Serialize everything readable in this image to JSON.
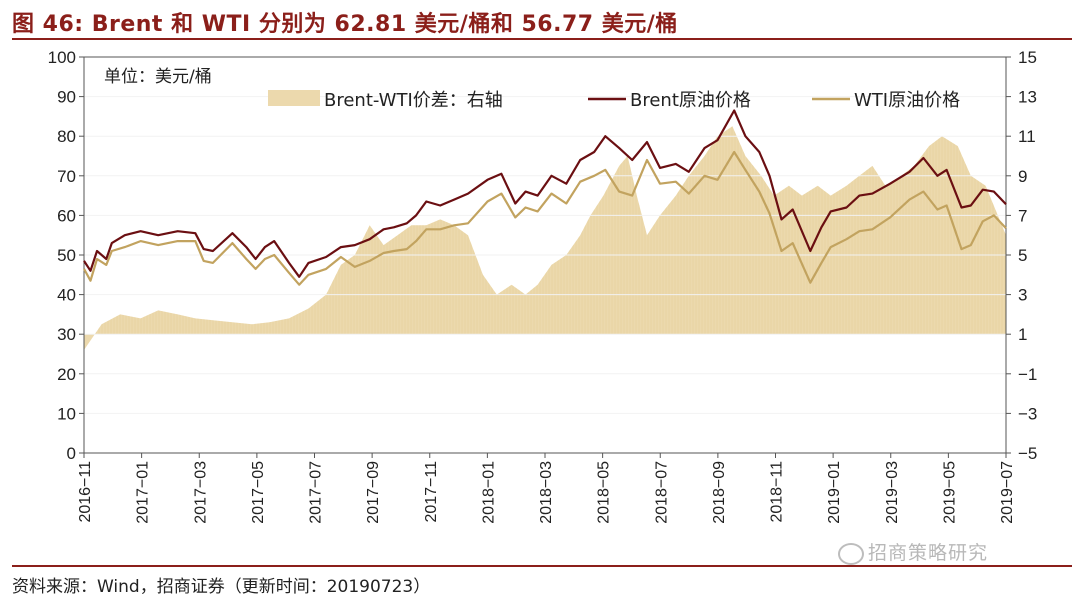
{
  "title": "图 46:   Brent 和 WTI 分别为 62.81 美元/桶和 56.77 美元/桶",
  "source": "资料来源：Wind，招商证券（更新时间：20190723）",
  "watermark": "招商策略研究",
  "colors": {
    "brent": "#6b0f12",
    "wti": "#c2a35f",
    "spread": "#ecd9ad",
    "accent": "#8b1f1a"
  },
  "chart_data": {
    "type": "line",
    "unit_label": "单位：美元/桶",
    "y_left": {
      "min": 0,
      "max": 100,
      "ticks": [
        "0",
        "10",
        "20",
        "30",
        "40",
        "50",
        "60",
        "70",
        "80",
        "90",
        "100"
      ]
    },
    "y_right": {
      "min": -5,
      "max": 15,
      "ticks": [
        "−5",
        "−3",
        "−1",
        "1",
        "3",
        "5",
        "7",
        "9",
        "11",
        "13",
        "15"
      ]
    },
    "x_tick_labels": [
      "2016−11",
      "2017−01",
      "2017−03",
      "2017−05",
      "2017−07",
      "2017−09",
      "2017−11",
      "2018−01",
      "2018−03",
      "2018−05",
      "2018−07",
      "2018−09",
      "2018−11",
      "2019−01",
      "2019−03",
      "2019−05",
      "2019−07"
    ],
    "x_range": [
      "2016-11-01",
      "2019-07-23"
    ],
    "legend_location": "top",
    "series": [
      {
        "name": "Brent-WTI价差：右轴",
        "kind": "area",
        "axis": "right",
        "points": [
          [
            "2016-11-01",
            0.2
          ],
          [
            "2016-11-20",
            1.5
          ],
          [
            "2016-12-10",
            2.0
          ],
          [
            "2017-01-01",
            1.8
          ],
          [
            "2017-01-20",
            2.2
          ],
          [
            "2017-02-10",
            2.0
          ],
          [
            "2017-03-01",
            1.8
          ],
          [
            "2017-03-20",
            1.7
          ],
          [
            "2017-04-10",
            1.6
          ],
          [
            "2017-05-01",
            1.5
          ],
          [
            "2017-05-20",
            1.6
          ],
          [
            "2017-06-10",
            1.8
          ],
          [
            "2017-07-01",
            2.3
          ],
          [
            "2017-07-20",
            3.0
          ],
          [
            "2017-08-05",
            4.5
          ],
          [
            "2017-08-20",
            5.0
          ],
          [
            "2017-09-05",
            6.5
          ],
          [
            "2017-09-20",
            5.5
          ],
          [
            "2017-10-05",
            6.0
          ],
          [
            "2017-10-20",
            6.5
          ],
          [
            "2017-11-05",
            6.5
          ],
          [
            "2017-11-20",
            6.8
          ],
          [
            "2017-12-05",
            6.5
          ],
          [
            "2017-12-20",
            6.0
          ],
          [
            "2018-01-05",
            4.0
          ],
          [
            "2018-01-20",
            3.0
          ],
          [
            "2018-02-05",
            3.5
          ],
          [
            "2018-02-20",
            3.0
          ],
          [
            "2018-03-05",
            3.5
          ],
          [
            "2018-03-20",
            4.5
          ],
          [
            "2018-04-05",
            5.0
          ],
          [
            "2018-04-20",
            6.0
          ],
          [
            "2018-05-01",
            7.0
          ],
          [
            "2018-05-15",
            8.0
          ],
          [
            "2018-06-01",
            9.5
          ],
          [
            "2018-06-10",
            10.0
          ],
          [
            "2018-06-20",
            8.0
          ],
          [
            "2018-07-01",
            6.0
          ],
          [
            "2018-07-15",
            7.0
          ],
          [
            "2018-08-01",
            8.0
          ],
          [
            "2018-08-15",
            9.0
          ],
          [
            "2018-09-01",
            10.0
          ],
          [
            "2018-09-15",
            11.0
          ],
          [
            "2018-10-01",
            11.5
          ],
          [
            "2018-10-15",
            10.0
          ],
          [
            "2018-11-01",
            9.0
          ],
          [
            "2018-11-15",
            8.0
          ],
          [
            "2018-12-01",
            8.5
          ],
          [
            "2018-12-15",
            8.0
          ],
          [
            "2019-01-01",
            8.5
          ],
          [
            "2019-01-15",
            8.0
          ],
          [
            "2019-02-01",
            8.5
          ],
          [
            "2019-02-15",
            9.0
          ],
          [
            "2019-03-01",
            9.5
          ],
          [
            "2019-03-15",
            8.5
          ],
          [
            "2019-04-01",
            9.0
          ],
          [
            "2019-04-15",
            9.5
          ],
          [
            "2019-05-01",
            10.5
          ],
          [
            "2019-05-15",
            11.0
          ],
          [
            "2019-06-01",
            10.5
          ],
          [
            "2019-06-15",
            9.0
          ],
          [
            "2019-07-01",
            8.5
          ],
          [
            "2019-07-23",
            6.0
          ]
        ]
      },
      {
        "name": "Brent原油价格",
        "kind": "line",
        "axis": "left",
        "points": [
          [
            "2016-11-01",
            48.5
          ],
          [
            "2016-11-08",
            46.0
          ],
          [
            "2016-11-15",
            51.0
          ],
          [
            "2016-11-25",
            49.0
          ],
          [
            "2016-12-01",
            53.0
          ],
          [
            "2016-12-15",
            55.0
          ],
          [
            "2017-01-01",
            56.0
          ],
          [
            "2017-01-20",
            55.0
          ],
          [
            "2017-02-10",
            56.0
          ],
          [
            "2017-03-01",
            55.5
          ],
          [
            "2017-03-10",
            51.5
          ],
          [
            "2017-03-20",
            51.0
          ],
          [
            "2017-04-10",
            55.5
          ],
          [
            "2017-04-25",
            52.0
          ],
          [
            "2017-05-05",
            49.0
          ],
          [
            "2017-05-15",
            52.0
          ],
          [
            "2017-05-25",
            53.5
          ],
          [
            "2017-06-10",
            48.0
          ],
          [
            "2017-06-21",
            44.5
          ],
          [
            "2017-07-01",
            48.0
          ],
          [
            "2017-07-20",
            49.5
          ],
          [
            "2017-08-05",
            52.0
          ],
          [
            "2017-08-20",
            52.5
          ],
          [
            "2017-09-05",
            54.0
          ],
          [
            "2017-09-20",
            56.5
          ],
          [
            "2017-10-01",
            57.0
          ],
          [
            "2017-10-15",
            58.0
          ],
          [
            "2017-10-25",
            60.0
          ],
          [
            "2017-11-05",
            63.5
          ],
          [
            "2017-11-20",
            62.5
          ],
          [
            "2017-12-05",
            64.0
          ],
          [
            "2017-12-20",
            65.5
          ],
          [
            "2018-01-10",
            69.0
          ],
          [
            "2018-01-25",
            70.5
          ],
          [
            "2018-02-09",
            63.0
          ],
          [
            "2018-02-20",
            66.0
          ],
          [
            "2018-03-05",
            65.0
          ],
          [
            "2018-03-20",
            70.0
          ],
          [
            "2018-04-05",
            68.0
          ],
          [
            "2018-04-20",
            74.0
          ],
          [
            "2018-05-05",
            76.0
          ],
          [
            "2018-05-17",
            80.0
          ],
          [
            "2018-06-01",
            77.0
          ],
          [
            "2018-06-15",
            74.0
          ],
          [
            "2018-07-01",
            78.5
          ],
          [
            "2018-07-15",
            72.0
          ],
          [
            "2018-08-01",
            73.0
          ],
          [
            "2018-08-15",
            71.0
          ],
          [
            "2018-09-01",
            77.0
          ],
          [
            "2018-09-15",
            79.0
          ],
          [
            "2018-10-03",
            86.5
          ],
          [
            "2018-10-15",
            80.0
          ],
          [
            "2018-10-30",
            76.0
          ],
          [
            "2018-11-10",
            70.0
          ],
          [
            "2018-11-23",
            59.0
          ],
          [
            "2018-12-05",
            61.5
          ],
          [
            "2018-12-24",
            51.0
          ],
          [
            "2019-01-05",
            57.0
          ],
          [
            "2019-01-15",
            61.0
          ],
          [
            "2019-02-01",
            62.0
          ],
          [
            "2019-02-15",
            65.0
          ],
          [
            "2019-03-01",
            65.5
          ],
          [
            "2019-03-20",
            68.0
          ],
          [
            "2019-04-10",
            71.0
          ],
          [
            "2019-04-25",
            74.5
          ],
          [
            "2019-05-10",
            70.0
          ],
          [
            "2019-05-20",
            71.5
          ],
          [
            "2019-06-05",
            62.0
          ],
          [
            "2019-06-15",
            62.5
          ],
          [
            "2019-06-28",
            66.5
          ],
          [
            "2019-07-10",
            66.0
          ],
          [
            "2019-07-23",
            62.81
          ]
        ]
      },
      {
        "name": "WTI原油价格",
        "kind": "line",
        "axis": "left",
        "points": [
          [
            "2016-11-01",
            46.5
          ],
          [
            "2016-11-08",
            43.5
          ],
          [
            "2016-11-15",
            49.0
          ],
          [
            "2016-11-25",
            47.5
          ],
          [
            "2016-12-01",
            51.0
          ],
          [
            "2016-12-15",
            52.0
          ],
          [
            "2017-01-01",
            53.5
          ],
          [
            "2017-01-20",
            52.5
          ],
          [
            "2017-02-10",
            53.5
          ],
          [
            "2017-03-01",
            53.5
          ],
          [
            "2017-03-10",
            48.5
          ],
          [
            "2017-03-20",
            48.0
          ],
          [
            "2017-04-10",
            53.0
          ],
          [
            "2017-04-25",
            49.0
          ],
          [
            "2017-05-05",
            46.5
          ],
          [
            "2017-05-15",
            49.0
          ],
          [
            "2017-05-25",
            50.0
          ],
          [
            "2017-06-10",
            45.5
          ],
          [
            "2017-06-21",
            42.5
          ],
          [
            "2017-07-01",
            45.0
          ],
          [
            "2017-07-20",
            46.5
          ],
          [
            "2017-08-05",
            49.5
          ],
          [
            "2017-08-20",
            47.0
          ],
          [
            "2017-09-05",
            48.5
          ],
          [
            "2017-09-20",
            50.5
          ],
          [
            "2017-10-01",
            51.0
          ],
          [
            "2017-10-15",
            51.5
          ],
          [
            "2017-10-25",
            53.5
          ],
          [
            "2017-11-05",
            56.5
          ],
          [
            "2017-11-20",
            56.5
          ],
          [
            "2017-12-05",
            57.5
          ],
          [
            "2017-12-20",
            58.0
          ],
          [
            "2018-01-10",
            63.5
          ],
          [
            "2018-01-25",
            65.5
          ],
          [
            "2018-02-09",
            59.5
          ],
          [
            "2018-02-20",
            62.0
          ],
          [
            "2018-03-05",
            61.0
          ],
          [
            "2018-03-20",
            65.5
          ],
          [
            "2018-04-05",
            63.0
          ],
          [
            "2018-04-20",
            68.5
          ],
          [
            "2018-05-05",
            70.0
          ],
          [
            "2018-05-17",
            71.5
          ],
          [
            "2018-06-01",
            66.0
          ],
          [
            "2018-06-15",
            65.0
          ],
          [
            "2018-07-01",
            74.0
          ],
          [
            "2018-07-15",
            68.0
          ],
          [
            "2018-08-01",
            68.5
          ],
          [
            "2018-08-15",
            65.5
          ],
          [
            "2018-09-01",
            70.0
          ],
          [
            "2018-09-15",
            69.0
          ],
          [
            "2018-10-03",
            76.0
          ],
          [
            "2018-10-15",
            71.5
          ],
          [
            "2018-10-30",
            66.0
          ],
          [
            "2018-11-10",
            60.5
          ],
          [
            "2018-11-23",
            51.0
          ],
          [
            "2018-12-05",
            53.0
          ],
          [
            "2018-12-24",
            43.0
          ],
          [
            "2019-01-05",
            48.0
          ],
          [
            "2019-01-15",
            52.0
          ],
          [
            "2019-02-01",
            54.0
          ],
          [
            "2019-02-15",
            56.0
          ],
          [
            "2019-03-01",
            56.5
          ],
          [
            "2019-03-20",
            59.5
          ],
          [
            "2019-04-10",
            64.0
          ],
          [
            "2019-04-25",
            66.0
          ],
          [
            "2019-05-10",
            61.5
          ],
          [
            "2019-05-20",
            62.5
          ],
          [
            "2019-06-05",
            51.5
          ],
          [
            "2019-06-15",
            52.5
          ],
          [
            "2019-06-28",
            58.5
          ],
          [
            "2019-07-10",
            60.0
          ],
          [
            "2019-07-23",
            56.77
          ]
        ]
      }
    ]
  }
}
